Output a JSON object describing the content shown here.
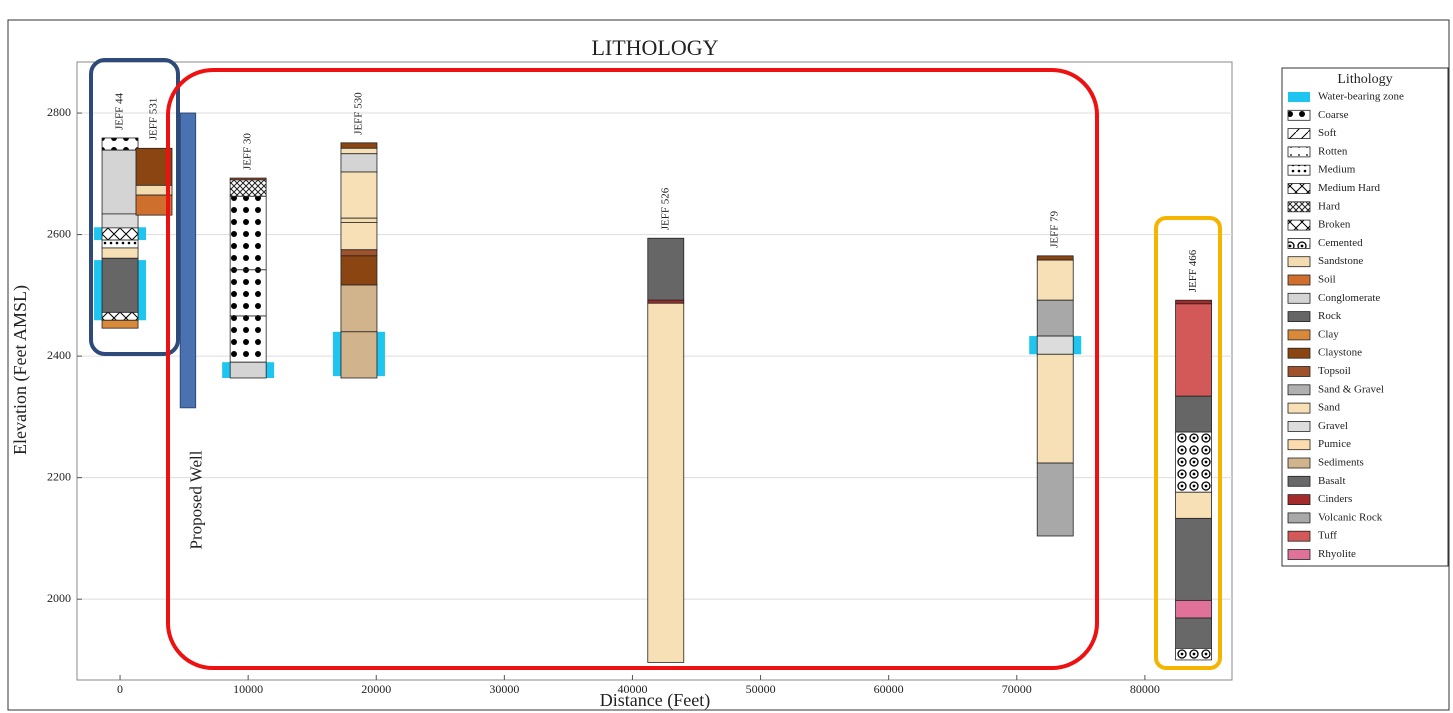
{
  "chart_data": {
    "type": "lithology",
    "title": "LITHOLOGY",
    "x_label": "Distance (Feet)",
    "y_label": "Elevation (Feet AMSL)",
    "xlim": [
      -3360,
      86800
    ],
    "ylim": [
      1867,
      2884
    ],
    "xticks": [
      0,
      10000,
      20000,
      30000,
      40000,
      50000,
      60000,
      70000,
      80000
    ],
    "yticks": [
      2000,
      2200,
      2400,
      2600,
      2800
    ],
    "grid": true,
    "legend": {
      "title": "Lithology",
      "position": "right",
      "items": [
        {
          "name": "Water-bearing zone",
          "color": "#1ec5f0",
          "pattern": "none"
        },
        {
          "name": "Coarse",
          "color": "#ffffff",
          "pattern": "dots"
        },
        {
          "name": "Soft",
          "color": "#ffffff",
          "pattern": "diag"
        },
        {
          "name": "Rotten",
          "color": "#ffffff",
          "pattern": "sparse"
        },
        {
          "name": "Medium",
          "color": "#ffffff",
          "pattern": "smalldots"
        },
        {
          "name": "Medium Hard",
          "color": "#ffffff",
          "pattern": "x"
        },
        {
          "name": "Hard",
          "color": "#ffffff",
          "pattern": "crosshatch"
        },
        {
          "name": "Broken",
          "color": "#ffffff",
          "pattern": "x"
        },
        {
          "name": "Cemented",
          "color": "#ffffff",
          "pattern": "circles"
        },
        {
          "name": "Sandstone",
          "color": "#f3dcb0",
          "pattern": "none"
        },
        {
          "name": "Soil",
          "color": "#cf6f2e",
          "pattern": "none"
        },
        {
          "name": "Conglomerate",
          "color": "#d4d4d4",
          "pattern": "none"
        },
        {
          "name": "Rock",
          "color": "#666666",
          "pattern": "none"
        },
        {
          "name": "Clay",
          "color": "#d9893a",
          "pattern": "none"
        },
        {
          "name": "Claystone",
          "color": "#8b4513",
          "pattern": "none"
        },
        {
          "name": "Topsoil",
          "color": "#a0522d",
          "pattern": "none"
        },
        {
          "name": "Sand & Gravel",
          "color": "#b0b0b0",
          "pattern": "none"
        },
        {
          "name": "Sand",
          "color": "#f7e0b6",
          "pattern": "none"
        },
        {
          "name": "Gravel",
          "color": "#dcdcdc",
          "pattern": "none"
        },
        {
          "name": "Pumice",
          "color": "#fbdcae",
          "pattern": "none"
        },
        {
          "name": "Sediments",
          "color": "#d2b48c",
          "pattern": "none"
        },
        {
          "name": "Basalt",
          "color": "#686868",
          "pattern": "none"
        },
        {
          "name": "Cinders",
          "color": "#a52a2a",
          "pattern": "none"
        },
        {
          "name": "Volcanic Rock",
          "color": "#a8a8a8",
          "pattern": "none"
        },
        {
          "name": "Tuff",
          "color": "#d35858",
          "pattern": "none"
        },
        {
          "name": "Rhyolite",
          "color": "#e0729a",
          "pattern": "none"
        }
      ]
    },
    "proposed_well": {
      "label": "Proposed Well",
      "x": [
        4700,
        5900
      ],
      "top": 2800,
      "bottom": 2315
    },
    "wells": [
      {
        "name": "JEFF 44",
        "x": 0,
        "water": [
          {
            "top": 2612,
            "bottom": 2591
          },
          {
            "top": 2558,
            "bottom": 2459
          }
        ],
        "intervals": [
          {
            "top": 2759,
            "bottom": 2739,
            "lith": "Coarse"
          },
          {
            "top": 2739,
            "bottom": 2634,
            "lith": "Conglomerate"
          },
          {
            "top": 2634,
            "bottom": 2611,
            "lith": "Gravel"
          },
          {
            "top": 2611,
            "bottom": 2591,
            "lith": "Broken"
          },
          {
            "top": 2591,
            "bottom": 2578,
            "lith": "Medium"
          },
          {
            "top": 2578,
            "bottom": 2561,
            "lith": "Sand"
          },
          {
            "top": 2561,
            "bottom": 2472,
            "lith": "Rock"
          },
          {
            "top": 2472,
            "bottom": 2459,
            "lith": "Medium Hard"
          },
          {
            "top": 2459,
            "bottom": 2446,
            "lith": "Clay"
          }
        ]
      },
      {
        "name": "JEFF 531",
        "x": 2650,
        "water": [],
        "intervals": [
          {
            "top": 2742,
            "bottom": 2681,
            "lith": "Claystone"
          },
          {
            "top": 2681,
            "bottom": 2665,
            "lith": "Sandstone"
          },
          {
            "top": 2665,
            "bottom": 2632,
            "lith": "Soil"
          }
        ]
      },
      {
        "name": "JEFF 30",
        "x": 10000,
        "water": [
          {
            "top": 2390,
            "bottom": 2364
          }
        ],
        "intervals": [
          {
            "top": 2693,
            "bottom": 2690,
            "lith": "Topsoil"
          },
          {
            "top": 2690,
            "bottom": 2663,
            "lith": "Hard"
          },
          {
            "top": 2663,
            "bottom": 2542,
            "lith": "Coarse"
          },
          {
            "top": 2542,
            "bottom": 2466,
            "lith": "Coarse"
          },
          {
            "top": 2466,
            "bottom": 2390,
            "lith": "Coarse"
          },
          {
            "top": 2390,
            "bottom": 2364,
            "lith": "Conglomerate"
          }
        ]
      },
      {
        "name": "JEFF 530",
        "x": 18650,
        "water": [
          {
            "top": 2440,
            "bottom": 2367
          }
        ],
        "intervals": [
          {
            "top": 2751,
            "bottom": 2742,
            "lith": "Claystone"
          },
          {
            "top": 2742,
            "bottom": 2733,
            "lith": "Sand"
          },
          {
            "top": 2733,
            "bottom": 2703,
            "lith": "Conglomerate"
          },
          {
            "top": 2703,
            "bottom": 2627,
            "lith": "Sand"
          },
          {
            "top": 2627,
            "bottom": 2620,
            "lith": "Sandstone"
          },
          {
            "top": 2620,
            "bottom": 2575,
            "lith": "Sand"
          },
          {
            "top": 2575,
            "bottom": 2565,
            "lith": "Topsoil"
          },
          {
            "top": 2565,
            "bottom": 2517,
            "lith": "Claystone"
          },
          {
            "top": 2517,
            "bottom": 2440,
            "lith": "Sediments"
          },
          {
            "top": 2440,
            "bottom": 2364,
            "lith": "Sediments"
          }
        ]
      },
      {
        "name": "JEFF 526",
        "x": 42600,
        "water": [],
        "intervals": [
          {
            "top": 2594,
            "bottom": 2492,
            "lith": "Rock"
          },
          {
            "top": 2492,
            "bottom": 2487,
            "lith": "Cinders"
          },
          {
            "top": 2487,
            "bottom": 1896,
            "lith": "Sand"
          }
        ]
      },
      {
        "name": "JEFF 79",
        "x": 73000,
        "water": [
          {
            "top": 2433,
            "bottom": 2403
          }
        ],
        "intervals": [
          {
            "top": 2565,
            "bottom": 2558,
            "lith": "Claystone"
          },
          {
            "top": 2558,
            "bottom": 2492,
            "lith": "Sand"
          },
          {
            "top": 2492,
            "bottom": 2433,
            "lith": "Volcanic Rock"
          },
          {
            "top": 2433,
            "bottom": 2403,
            "lith": "Gravel"
          },
          {
            "top": 2403,
            "bottom": 2224,
            "lith": "Sand"
          },
          {
            "top": 2224,
            "bottom": 2104,
            "lith": "Volcanic Rock"
          }
        ]
      },
      {
        "name": "JEFF 466",
        "x": 83800,
        "water": [],
        "intervals": [
          {
            "top": 2492,
            "bottom": 2486,
            "lith": "Cinders"
          },
          {
            "top": 2486,
            "bottom": 2334,
            "lith": "Tuff"
          },
          {
            "top": 2334,
            "bottom": 2275,
            "lith": "Rock"
          },
          {
            "top": 2275,
            "bottom": 2176,
            "lith": "Cemented"
          },
          {
            "top": 2176,
            "bottom": 2133,
            "lith": "Sand"
          },
          {
            "top": 2133,
            "bottom": 1998,
            "lith": "Basalt"
          },
          {
            "top": 1998,
            "bottom": 1969,
            "lith": "Rhyolite"
          },
          {
            "top": 1969,
            "bottom": 1919,
            "lith": "Basalt"
          },
          {
            "top": 1919,
            "bottom": 1900,
            "lith": "Cemented"
          }
        ]
      }
    ]
  }
}
